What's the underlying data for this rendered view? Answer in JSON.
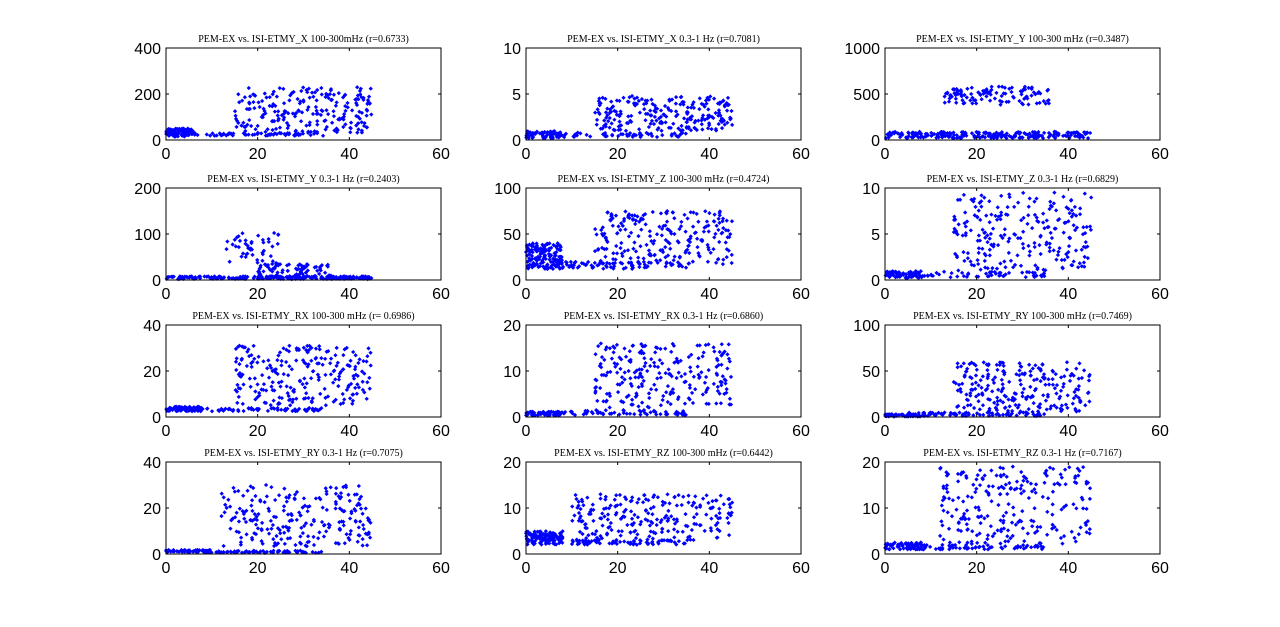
{
  "figure": {
    "background": "#ffffff",
    "marker_color": "#0000ff"
  },
  "chart_data": [
    {
      "type": "scatter",
      "title": "PEM-EX vs. ISI-ETMY_X 100-300mHz (r=0.6733)",
      "xlim": [
        0,
        60
      ],
      "ylim": [
        0,
        400
      ],
      "xticks": [
        0,
        20,
        40,
        60
      ],
      "yticks": [
        0,
        200,
        400
      ],
      "grid": false,
      "clusters": [
        {
          "x": [
            0,
            6
          ],
          "y": [
            15,
            50
          ],
          "n": 90
        },
        {
          "x": [
            5,
            35
          ],
          "y": [
            18,
            30
          ],
          "n": 60
        },
        {
          "x": [
            15,
            45
          ],
          "y": [
            30,
            230
          ],
          "n": 220
        }
      ]
    },
    {
      "type": "scatter",
      "title": "PEM-EX vs. ISI-ETMY_X 0.3-1 Hz (r=0.7081)",
      "xlim": [
        0,
        60
      ],
      "ylim": [
        0,
        10
      ],
      "xticks": [
        0,
        20,
        40,
        60
      ],
      "yticks": [
        0,
        5,
        10
      ],
      "grid": false,
      "clusters": [
        {
          "x": [
            0,
            8
          ],
          "y": [
            0.2,
            1.0
          ],
          "n": 60
        },
        {
          "x": [
            5,
            35
          ],
          "y": [
            0.3,
            0.8
          ],
          "n": 60
        },
        {
          "x": [
            15,
            45
          ],
          "y": [
            1.0,
            4.8
          ],
          "n": 230
        }
      ]
    },
    {
      "type": "scatter",
      "title": "PEM-EX vs. ISI-ETMY_Y 100-300 mHz (r=0.3487)",
      "xlim": [
        0,
        60
      ],
      "ylim": [
        0,
        1000
      ],
      "xticks": [
        0,
        20,
        40,
        60
      ],
      "yticks": [
        0,
        500,
        1000
      ],
      "grid": false,
      "clusters": [
        {
          "x": [
            0,
            45
          ],
          "y": [
            20,
            90
          ],
          "n": 230
        },
        {
          "x": [
            13,
            36
          ],
          "y": [
            380,
            580
          ],
          "n": 110
        }
      ]
    },
    {
      "type": "scatter",
      "title": "PEM-EX vs. ISI-ETMY_Y 0.3-1 Hz (r=0.2403)",
      "xlim": [
        0,
        60
      ],
      "ylim": [
        0,
        200
      ],
      "xticks": [
        0,
        20,
        40,
        60
      ],
      "yticks": [
        0,
        100,
        200
      ],
      "grid": false,
      "clusters": [
        {
          "x": [
            0,
            45
          ],
          "y": [
            2,
            8
          ],
          "n": 230
        },
        {
          "x": [
            13,
            25
          ],
          "y": [
            30,
            105
          ],
          "n": 50
        },
        {
          "x": [
            20,
            36
          ],
          "y": [
            5,
            35
          ],
          "n": 80
        }
      ]
    },
    {
      "type": "scatter",
      "title": "PEM-EX vs. ISI-ETMY_Z 100-300 mHz (r=0.4724)",
      "xlim": [
        0,
        60
      ],
      "ylim": [
        0,
        100
      ],
      "xticks": [
        0,
        20,
        40,
        60
      ],
      "yticks": [
        0,
        50,
        100
      ],
      "grid": false,
      "clusters": [
        {
          "x": [
            0,
            8
          ],
          "y": [
            12,
            40
          ],
          "n": 140
        },
        {
          "x": [
            5,
            35
          ],
          "y": [
            12,
            20
          ],
          "n": 70
        },
        {
          "x": [
            15,
            45
          ],
          "y": [
            15,
            75
          ],
          "n": 230
        }
      ]
    },
    {
      "type": "scatter",
      "title": "PEM-EX vs. ISI-ETMY_Z 0.3-1 Hz (r=0.6829)",
      "xlim": [
        0,
        60
      ],
      "ylim": [
        0,
        10
      ],
      "xticks": [
        0,
        20,
        40,
        60
      ],
      "yticks": [
        0,
        5,
        10
      ],
      "grid": false,
      "clusters": [
        {
          "x": [
            0,
            8
          ],
          "y": [
            0.2,
            1.0
          ],
          "n": 60
        },
        {
          "x": [
            5,
            35
          ],
          "y": [
            0.3,
            0.9
          ],
          "n": 60
        },
        {
          "x": [
            15,
            45
          ],
          "y": [
            1.0,
            9.5
          ],
          "n": 230
        }
      ]
    },
    {
      "type": "scatter",
      "title": "PEM-EX vs. ISI-ETMY_RX 100-300 mHz (r= 0.6986)",
      "xlim": [
        0,
        60
      ],
      "ylim": [
        0,
        40
      ],
      "xticks": [
        0,
        20,
        40,
        60
      ],
      "yticks": [
        0,
        20,
        40
      ],
      "grid": false,
      "clusters": [
        {
          "x": [
            0,
            8
          ],
          "y": [
            2.5,
            4.5
          ],
          "n": 80
        },
        {
          "x": [
            5,
            35
          ],
          "y": [
            2.5,
            4.0
          ],
          "n": 70
        },
        {
          "x": [
            15,
            45
          ],
          "y": [
            5,
            31
          ],
          "n": 230
        }
      ]
    },
    {
      "type": "scatter",
      "title": "PEM-EX vs. ISI-ETMY_RX 0.3-1 Hz (r=0.6860)",
      "xlim": [
        0,
        60
      ],
      "ylim": [
        0,
        20
      ],
      "xticks": [
        0,
        20,
        40,
        60
      ],
      "yticks": [
        0,
        10,
        20
      ],
      "grid": false,
      "clusters": [
        {
          "x": [
            0,
            8
          ],
          "y": [
            0.3,
            1.2
          ],
          "n": 60
        },
        {
          "x": [
            5,
            35
          ],
          "y": [
            0.4,
            1.5
          ],
          "n": 70
        },
        {
          "x": [
            15,
            45
          ],
          "y": [
            2,
            16
          ],
          "n": 230
        }
      ]
    },
    {
      "type": "scatter",
      "title": "PEM-EX vs. ISI-ETMY_RY 100-300 mHz (r=0.7469)",
      "xlim": [
        0,
        60
      ],
      "ylim": [
        0,
        100
      ],
      "xticks": [
        0,
        20,
        40,
        60
      ],
      "yticks": [
        0,
        50,
        100
      ],
      "grid": false,
      "clusters": [
        {
          "x": [
            0,
            8
          ],
          "y": [
            0.5,
            3
          ],
          "n": 60
        },
        {
          "x": [
            5,
            35
          ],
          "y": [
            1,
            5
          ],
          "n": 70
        },
        {
          "x": [
            15,
            45
          ],
          "y": [
            5,
            60
          ],
          "n": 230
        }
      ]
    },
    {
      "type": "scatter",
      "title": "PEM-EX vs. ISI-ETMY_RY 0.3-1 Hz (r=0.7075)",
      "xlim": [
        0,
        60
      ],
      "ylim": [
        0,
        40
      ],
      "xticks": [
        0,
        20,
        40,
        60
      ],
      "yticks": [
        0,
        20,
        40
      ],
      "grid": false,
      "clusters": [
        {
          "x": [
            0,
            10
          ],
          "y": [
            0.8,
            1.8
          ],
          "n": 60
        },
        {
          "x": [
            8,
            34
          ],
          "y": [
            0.5,
            1.5
          ],
          "n": 70
        },
        {
          "x": [
            12,
            45
          ],
          "y": [
            3,
            30
          ],
          "n": 230
        }
      ]
    },
    {
      "type": "scatter",
      "title": "PEM-EX vs. ISI-ETMY_RZ 100-300 mHz (r=0.6442)",
      "xlim": [
        0,
        60
      ],
      "ylim": [
        0,
        20
      ],
      "xticks": [
        0,
        20,
        40,
        60
      ],
      "yticks": [
        0,
        10,
        20
      ],
      "grid": false,
      "clusters": [
        {
          "x": [
            0,
            8
          ],
          "y": [
            2,
            5
          ],
          "n": 120
        },
        {
          "x": [
            5,
            35
          ],
          "y": [
            2,
            3
          ],
          "n": 70
        },
        {
          "x": [
            10,
            45
          ],
          "y": [
            3,
            13
          ],
          "n": 230
        }
      ]
    },
    {
      "type": "scatter",
      "title": "PEM-EX vs. ISI-ETMY_RZ 0.3-1 Hz (r=0.7167)",
      "xlim": [
        0,
        60
      ],
      "ylim": [
        0,
        20
      ],
      "xticks": [
        0,
        20,
        40,
        60
      ],
      "yticks": [
        0,
        10,
        20
      ],
      "grid": false,
      "clusters": [
        {
          "x": [
            0,
            8
          ],
          "y": [
            1,
            2.5
          ],
          "n": 60
        },
        {
          "x": [
            5,
            35
          ],
          "y": [
            1,
            2
          ],
          "n": 70
        },
        {
          "x": [
            12,
            45
          ],
          "y": [
            2,
            19
          ],
          "n": 230
        }
      ]
    }
  ]
}
